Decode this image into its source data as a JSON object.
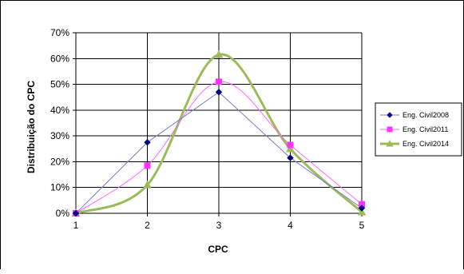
{
  "chart_data": {
    "type": "line",
    "title": "",
    "xlabel": "CPC",
    "ylabel": "Distribuição do CPC",
    "x": [
      1,
      2,
      3,
      4,
      5
    ],
    "xlim": [
      1,
      5
    ],
    "ylim": [
      0,
      70
    ],
    "y_ticks": [
      "0%",
      "10%",
      "20%",
      "30%",
      "40%",
      "50%",
      "60%",
      "70%"
    ],
    "x_ticks": [
      "1",
      "2",
      "3",
      "4",
      "5"
    ],
    "grid": true,
    "legend_position": "right",
    "series": [
      {
        "name": "Eng. Civil2008",
        "values": [
          0,
          27.5,
          47,
          21.5,
          2
        ],
        "color": "#7b7bc8",
        "marker_color": "#000080",
        "marker": "diamond",
        "line_width": 1,
        "smooth": false
      },
      {
        "name": "Eng. Civil2011",
        "values": [
          0,
          18.5,
          51,
          26.5,
          3.5
        ],
        "color": "#ff66ff",
        "marker_color": "#ff33ff",
        "marker": "square",
        "line_width": 1,
        "smooth": true
      },
      {
        "name": "Eng. Civil2014",
        "values": [
          0,
          11,
          61.5,
          25,
          0.5
        ],
        "color": "#9bbb59",
        "marker_color": "#9bbb59",
        "marker": "triangle",
        "line_width": 3,
        "smooth": true
      }
    ]
  }
}
